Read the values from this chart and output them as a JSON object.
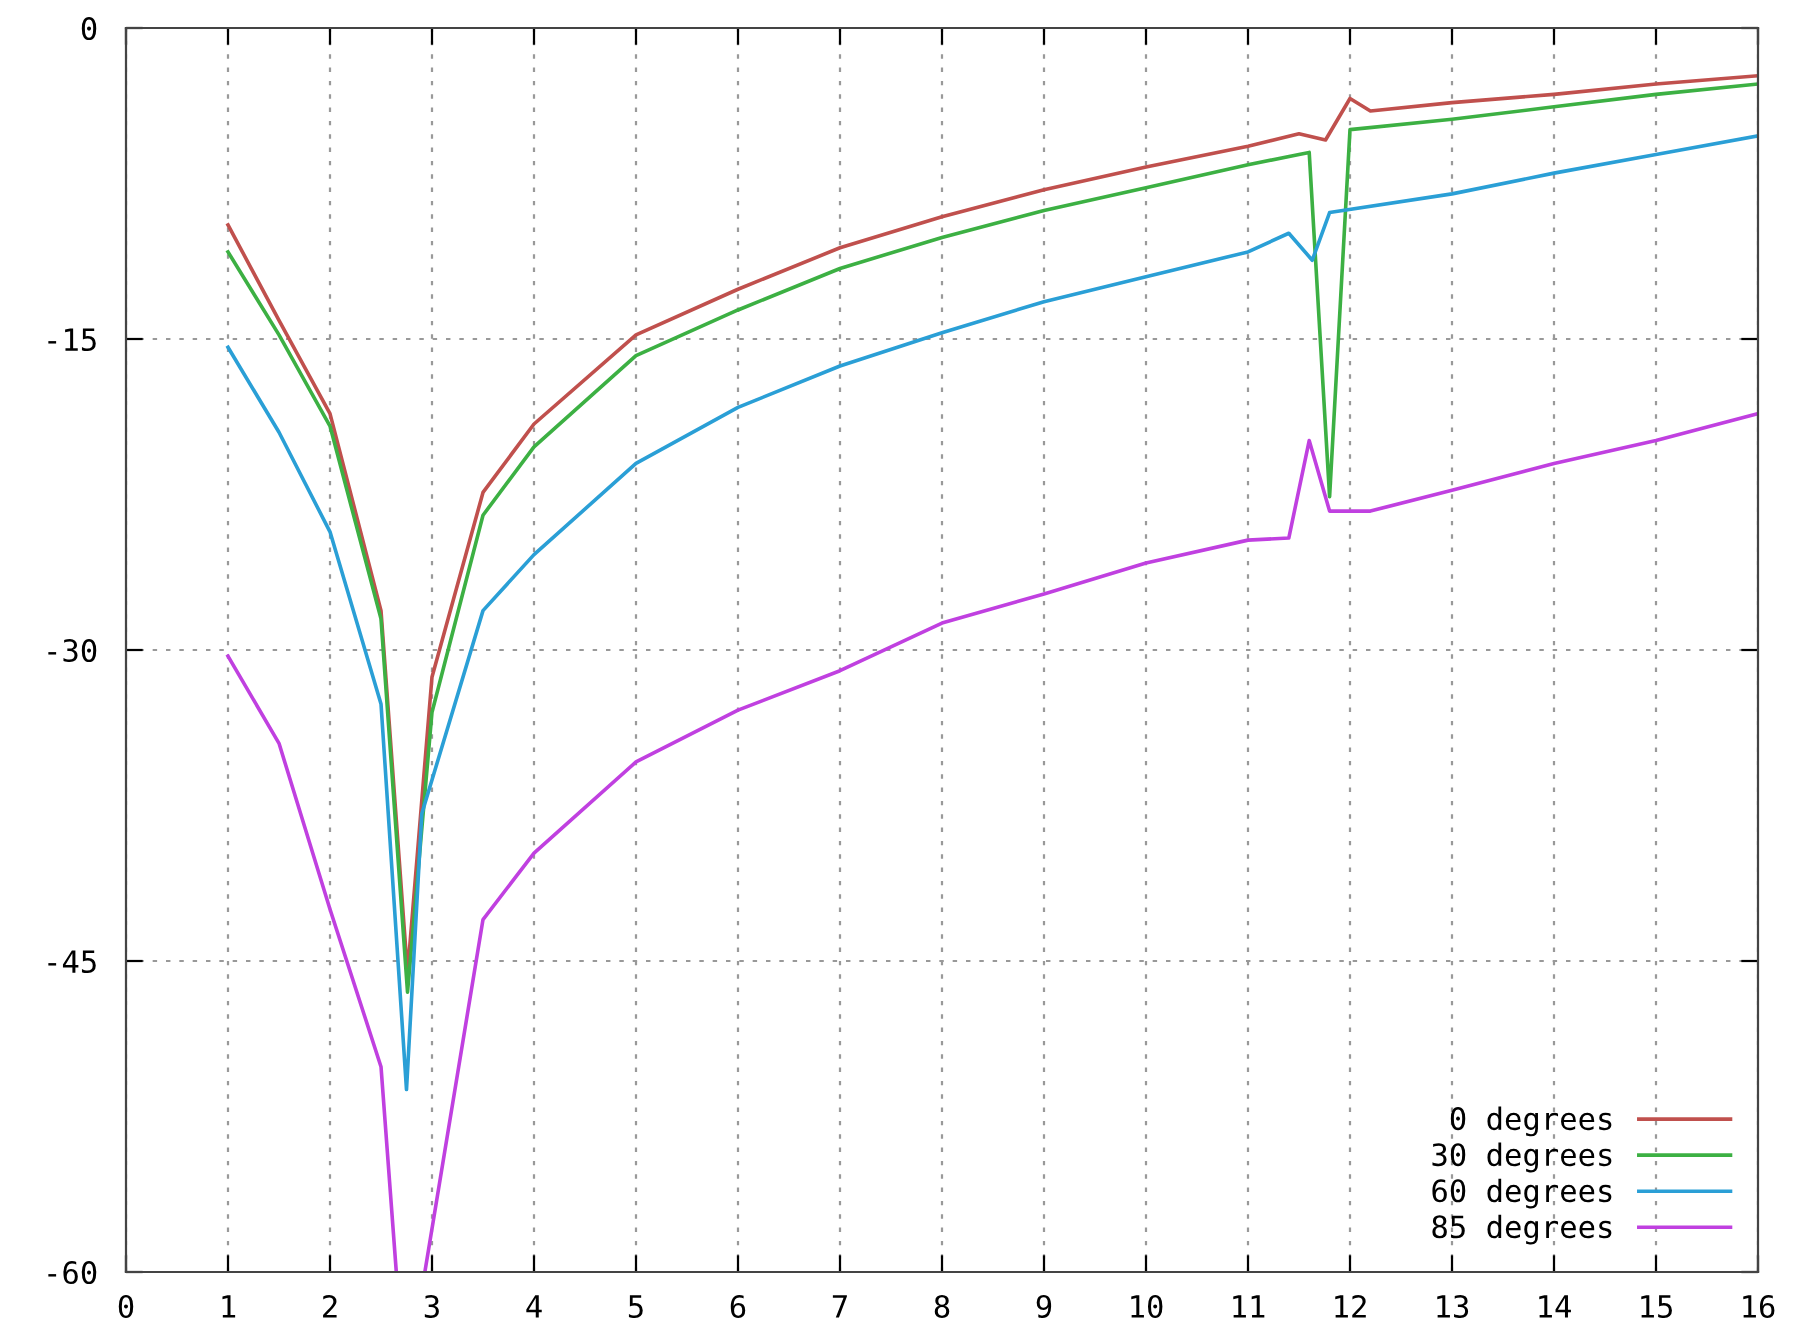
{
  "chart_data": {
    "type": "line",
    "xlim": [
      0,
      16
    ],
    "ylim": [
      -60,
      0
    ],
    "xticks": [
      0,
      1,
      2,
      3,
      4,
      5,
      6,
      7,
      8,
      9,
      10,
      11,
      12,
      13,
      14,
      15,
      16
    ],
    "yticks": [
      0,
      -15,
      -30,
      -45,
      -60
    ],
    "grid": true,
    "legend": "bottom right",
    "line_style": "solid",
    "marker": "none",
    "series": [
      {
        "name": "0 degrees",
        "color": "#c0504d",
        "x": [
          1,
          1.5,
          2,
          2.5,
          2.76,
          3,
          3.5,
          4,
          5,
          6,
          7,
          8,
          9,
          10,
          11,
          11.5,
          11.76,
          12,
          12.2,
          13,
          14,
          15,
          16
        ],
        "values": [
          -9.5,
          -14.1,
          -18.6,
          -28.1,
          -45.6,
          -31.3,
          -22.4,
          -19.1,
          -14.8,
          -12.6,
          -10.6,
          -9.1,
          -7.8,
          -6.7,
          -5.7,
          -5.1,
          -5.4,
          -3.4,
          -4.0,
          -3.6,
          -3.2,
          -2.7,
          -2.3
        ]
      },
      {
        "name": "30 degrees",
        "color": "#3cb043",
        "x": [
          1,
          1.5,
          2,
          2.5,
          2.76,
          3,
          3.5,
          4,
          5,
          6,
          7,
          8,
          9,
          10,
          11,
          11.5,
          11.6,
          11.8,
          12,
          13,
          14,
          15,
          16
        ],
        "values": [
          -10.8,
          -14.8,
          -19.2,
          -28.5,
          -46.5,
          -33,
          -23.5,
          -20.2,
          -15.8,
          -13.6,
          -11.6,
          -10.1,
          -8.8,
          -7.7,
          -6.6,
          -6.1,
          -6.0,
          -22.6,
          -4.9,
          -4.4,
          -3.8,
          -3.2,
          -2.7
        ]
      },
      {
        "name": "60 degrees",
        "color": "#2a9fd6",
        "x": [
          1,
          1.5,
          2,
          2.5,
          2.75,
          2.9,
          3.5,
          4,
          5,
          6,
          7,
          8,
          9,
          10,
          11,
          11.4,
          11.63,
          11.8,
          13,
          14,
          15,
          16
        ],
        "values": [
          -15.4,
          -19.5,
          -24.3,
          -32.6,
          -51.2,
          -37.9,
          -28.1,
          -25.4,
          -21,
          -18.3,
          -16.3,
          -14.7,
          -13.2,
          -12,
          -10.8,
          -9.9,
          -11.2,
          -8.9,
          -8,
          -7,
          -6.1,
          -5.2
        ]
      },
      {
        "name": "85 degrees",
        "color": "#c040e0",
        "x": [
          1,
          1.5,
          2,
          2.5,
          2.65,
          2.8,
          2.93,
          3.5,
          4,
          5,
          6,
          7,
          8,
          9,
          10,
          11,
          11.4,
          11.6,
          11.8,
          12.2,
          13,
          14,
          15,
          16
        ],
        "values": [
          -30.3,
          -34.5,
          -42.5,
          -50.1,
          -60,
          null,
          -60,
          -43,
          -39.8,
          -35.4,
          -32.9,
          -31,
          -28.7,
          -27.3,
          -25.8,
          -24.7,
          -24.6,
          -19.9,
          -23.3,
          -23.3,
          -22.3,
          -21,
          -19.9,
          -18.6
        ]
      }
    ]
  }
}
